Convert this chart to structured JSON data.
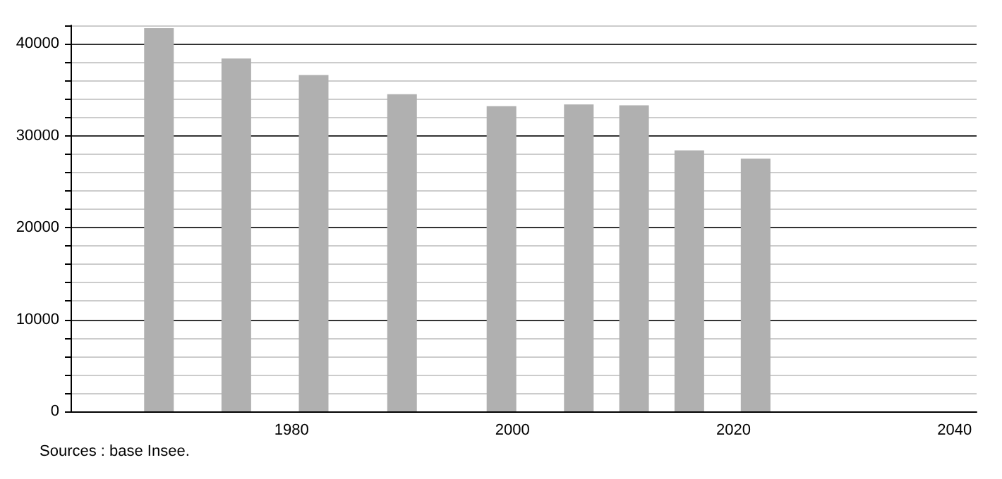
{
  "chart_data": {
    "type": "bar",
    "x": [
      1968,
      1975,
      1982,
      1990,
      1999,
      2006,
      2011,
      2016,
      2022
    ],
    "values": [
      41700,
      38400,
      36600,
      34500,
      33200,
      33400,
      33300,
      28400,
      27500
    ],
    "color": "#b0b0b0",
    "xlim": [
      1960,
      2042
    ],
    "xticks": [
      1980,
      2000,
      2020,
      2040
    ],
    "ylim": [
      0,
      42000
    ],
    "yticks": [
      0,
      {
        "value": 2000,
        "label": null
      },
      {
        "value": 4000,
        "label": null
      },
      {
        "value": 6000,
        "label": null
      },
      {
        "value": 8000,
        "label": null
      },
      10000,
      {
        "value": 12000,
        "label": null
      },
      {
        "value": 14000,
        "label": null
      },
      {
        "value": 16000,
        "label": null
      },
      {
        "value": 18000,
        "label": null
      },
      20000,
      {
        "value": 22000,
        "label": null
      },
      {
        "value": 24000,
        "label": null
      },
      {
        "value": 26000,
        "label": null
      },
      {
        "value": 28000,
        "label": null
      },
      30000,
      {
        "value": 32000,
        "label": null
      },
      {
        "value": 34000,
        "label": null
      },
      {
        "value": 36000,
        "label": null
      },
      {
        "value": 38000,
        "label": null
      },
      40000,
      {
        "value": 42000,
        "label": null
      }
    ],
    "grid": "y",
    "annotations": [
      "Sources : base Insee."
    ]
  }
}
